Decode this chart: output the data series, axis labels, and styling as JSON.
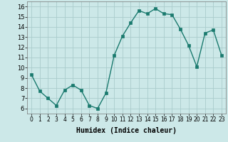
{
  "x": [
    0,
    1,
    2,
    3,
    4,
    5,
    6,
    7,
    8,
    9,
    10,
    11,
    12,
    13,
    14,
    15,
    16,
    17,
    18,
    19,
    20,
    21,
    22,
    23
  ],
  "y": [
    9.3,
    7.7,
    7.0,
    6.3,
    7.8,
    8.3,
    7.8,
    6.3,
    6.0,
    7.5,
    11.2,
    13.1,
    14.4,
    15.6,
    15.3,
    15.8,
    15.3,
    15.2,
    13.8,
    12.2,
    10.1,
    13.4,
    13.7,
    11.2
  ],
  "xlabel": "Humidex (Indice chaleur)",
  "xlim": [
    -0.5,
    23.5
  ],
  "ylim": [
    5.5,
    16.5
  ],
  "yticks": [
    6,
    7,
    8,
    9,
    10,
    11,
    12,
    13,
    14,
    15,
    16
  ],
  "xticks": [
    0,
    1,
    2,
    3,
    4,
    5,
    6,
    7,
    8,
    9,
    10,
    11,
    12,
    13,
    14,
    15,
    16,
    17,
    18,
    19,
    20,
    21,
    22,
    23
  ],
  "xtick_labels": [
    "0",
    "1",
    "2",
    "3",
    "4",
    "5",
    "6",
    "7",
    "8",
    "9",
    "10",
    "11",
    "12",
    "13",
    "14",
    "15",
    "16",
    "17",
    "18",
    "19",
    "20",
    "21",
    "22",
    "23"
  ],
  "line_color": "#1a7a6e",
  "marker_color": "#1a7a6e",
  "bg_color": "#cce8e8",
  "grid_color": "#aacccc",
  "plot_bg": "#cce8e8",
  "xlabel_fontsize": 7,
  "tick_fontsize": 5.5,
  "ytick_fontsize": 6
}
